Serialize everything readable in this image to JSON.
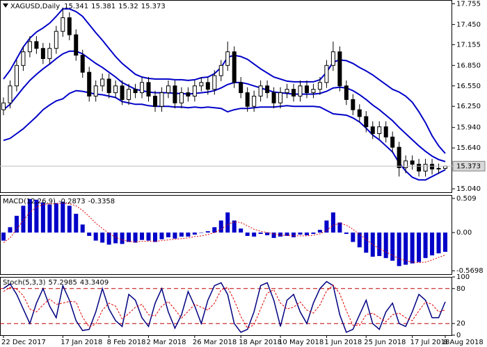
{
  "chart_data": [
    {
      "type": "candlestick",
      "title": "XAGUSD,Daily",
      "categories": [
        "22 Dec 2017",
        null,
        null,
        null,
        null,
        null,
        null,
        null,
        null,
        "17 Jan 2018",
        null,
        null,
        null,
        null,
        null,
        null,
        "8 Feb 2018",
        null,
        null,
        null,
        null,
        null,
        "2 Mar 2018",
        null,
        null,
        null,
        null,
        null,
        null,
        "26 Mar 2018",
        null,
        null,
        null,
        null,
        null,
        null,
        "18 Apr 2018",
        null,
        null,
        null,
        null,
        null,
        "10 May 2018",
        null,
        null,
        null,
        null,
        null,
        null,
        "1 Jun 2018",
        null,
        null,
        null,
        null,
        null,
        "25 Jun 2018",
        null,
        null,
        null,
        null,
        null,
        null,
        "17 Jul 2018",
        null,
        null,
        null,
        null,
        "8 Aug 2018"
      ],
      "open": [
        16.2,
        16.3,
        16.55,
        16.85,
        17.05,
        17.2,
        17.1,
        16.95,
        17.1,
        17.35,
        17.55,
        17.3,
        17.0,
        16.75,
        16.4,
        16.55,
        16.65,
        16.45,
        16.55,
        16.35,
        16.5,
        16.45,
        16.6,
        16.4,
        16.25,
        16.45,
        16.55,
        16.3,
        16.45,
        16.4,
        16.55,
        16.6,
        16.5,
        16.7,
        16.85,
        17.05,
        16.6,
        16.45,
        16.25,
        16.4,
        16.55,
        16.45,
        16.3,
        16.45,
        16.5,
        16.4,
        16.55,
        16.45,
        16.5,
        16.6,
        16.85,
        17.05,
        16.55,
        16.35,
        16.2,
        16.1,
        15.95,
        15.85,
        15.95,
        15.8,
        15.65,
        15.35,
        15.45,
        15.4,
        15.3,
        15.4,
        15.33,
        15.341
      ],
      "high": [
        16.38,
        16.63,
        16.93,
        17.13,
        17.28,
        17.28,
        17.18,
        17.18,
        17.43,
        17.7,
        17.63,
        17.38,
        17.08,
        16.83,
        16.63,
        16.73,
        16.73,
        16.63,
        16.63,
        16.58,
        16.58,
        16.68,
        16.68,
        16.48,
        16.53,
        16.63,
        16.63,
        16.53,
        16.53,
        16.63,
        16.68,
        16.68,
        16.78,
        16.93,
        17.2,
        17.13,
        16.68,
        16.53,
        16.48,
        16.63,
        16.63,
        16.53,
        16.53,
        16.58,
        16.58,
        16.63,
        16.63,
        16.58,
        16.68,
        16.93,
        17.2,
        17.13,
        16.63,
        16.43,
        16.28,
        16.18,
        16.03,
        16.03,
        16.03,
        15.88,
        15.73,
        15.53,
        15.53,
        15.48,
        15.48,
        15.48,
        15.41,
        15.381
      ],
      "low": [
        16.12,
        16.22,
        16.47,
        16.77,
        16.97,
        17.02,
        16.87,
        16.87,
        17.02,
        17.27,
        17.22,
        16.92,
        16.67,
        16.32,
        16.32,
        16.47,
        16.37,
        16.37,
        16.27,
        16.27,
        16.37,
        16.37,
        16.32,
        16.17,
        16.17,
        16.37,
        16.22,
        16.22,
        16.32,
        16.32,
        16.47,
        16.42,
        16.42,
        16.62,
        16.77,
        16.52,
        16.37,
        16.17,
        16.17,
        16.32,
        16.37,
        16.22,
        16.22,
        16.37,
        16.32,
        16.32,
        16.37,
        16.37,
        16.42,
        16.52,
        16.77,
        16.47,
        16.27,
        16.12,
        16.02,
        15.87,
        15.77,
        15.77,
        15.72,
        15.57,
        15.22,
        15.27,
        15.32,
        15.22,
        15.22,
        15.25,
        15.26,
        15.32
      ],
      "close": [
        16.3,
        16.55,
        16.85,
        17.05,
        17.2,
        17.1,
        16.95,
        17.1,
        17.35,
        17.55,
        17.3,
        17.0,
        16.75,
        16.4,
        16.55,
        16.65,
        16.45,
        16.55,
        16.35,
        16.5,
        16.45,
        16.6,
        16.4,
        16.25,
        16.45,
        16.55,
        16.3,
        16.45,
        16.4,
        16.55,
        16.6,
        16.5,
        16.7,
        16.85,
        17.05,
        16.6,
        16.45,
        16.25,
        16.4,
        16.55,
        16.45,
        16.3,
        16.45,
        16.5,
        16.4,
        16.55,
        16.45,
        16.5,
        16.6,
        16.85,
        17.05,
        16.55,
        16.35,
        16.2,
        16.1,
        15.95,
        15.85,
        15.95,
        15.8,
        15.65,
        15.35,
        15.45,
        15.4,
        15.3,
        15.4,
        15.33,
        15.34,
        15.373
      ],
      "bands": {
        "color": "#0000c8",
        "upper": [
          16.65,
          16.78,
          16.95,
          17.12,
          17.25,
          17.34,
          17.4,
          17.47,
          17.57,
          17.68,
          17.68,
          17.64,
          17.57,
          17.45,
          17.33,
          17.22,
          17.1,
          16.98,
          16.88,
          16.8,
          16.72,
          16.68,
          16.66,
          16.65,
          16.65,
          16.65,
          16.64,
          16.64,
          16.63,
          16.64,
          16.67,
          16.68,
          16.73,
          16.82,
          16.97,
          17.0,
          16.98,
          16.94,
          16.87,
          16.8,
          16.74,
          16.68,
          16.65,
          16.62,
          16.61,
          16.61,
          16.61,
          16.61,
          16.64,
          16.75,
          16.9,
          16.93,
          16.92,
          16.88,
          16.82,
          16.77,
          16.71,
          16.64,
          16.57,
          16.5,
          16.46,
          16.4,
          16.31,
          16.17,
          16.01,
          15.82,
          15.67,
          15.56
        ],
        "middle": [
          16.2,
          16.28,
          16.4,
          16.52,
          16.63,
          16.72,
          16.8,
          16.87,
          16.95,
          17.02,
          17.06,
          17.06,
          17.02,
          16.95,
          16.88,
          16.82,
          16.75,
          16.68,
          16.6,
          16.55,
          16.5,
          16.48,
          16.46,
          16.45,
          16.45,
          16.45,
          16.44,
          16.44,
          16.43,
          16.44,
          16.45,
          16.46,
          16.48,
          16.52,
          16.57,
          16.6,
          16.6,
          16.58,
          16.55,
          16.52,
          16.49,
          16.46,
          16.45,
          16.44,
          16.43,
          16.43,
          16.43,
          16.43,
          16.44,
          16.47,
          16.52,
          16.53,
          16.52,
          16.48,
          16.42,
          16.35,
          16.27,
          16.2,
          16.12,
          16.04,
          15.94,
          15.85,
          15.76,
          15.67,
          15.59,
          15.52,
          15.47,
          15.44
        ],
        "lower": [
          15.75,
          15.78,
          15.85,
          15.92,
          16.01,
          16.1,
          16.2,
          16.27,
          16.33,
          16.36,
          16.44,
          16.48,
          16.47,
          16.45,
          16.43,
          16.42,
          16.4,
          16.38,
          16.32,
          16.3,
          16.28,
          16.28,
          16.26,
          16.25,
          16.25,
          16.25,
          16.24,
          16.24,
          16.23,
          16.24,
          16.23,
          16.24,
          16.23,
          16.22,
          16.17,
          16.2,
          16.22,
          16.22,
          16.23,
          16.24,
          16.24,
          16.24,
          16.25,
          16.26,
          16.25,
          16.25,
          16.25,
          16.25,
          16.24,
          16.19,
          16.14,
          16.13,
          16.12,
          16.08,
          16.02,
          15.93,
          15.83,
          15.76,
          15.67,
          15.58,
          15.42,
          15.3,
          15.21,
          15.17,
          15.17,
          15.22,
          15.27,
          15.32
        ]
      },
      "ylim": [
        14.99,
        17.81
      ],
      "yticks": [
        17.755,
        {
          "value": 17.45,
          "label": "17.450"
        },
        17.155,
        {
          "value": 16.85,
          "label": "16.850"
        },
        {
          "value": 16.55,
          "label": "16.550"
        },
        {
          "value": 16.25,
          "label": "16.250"
        },
        {
          "value": 15.94,
          "label": "15.940"
        },
        {
          "value": 15.64,
          "label": "15.640"
        },
        {
          "value": 15.04,
          "label": "15.040"
        }
      ]
    },
    {
      "type": "macd",
      "title": "MACD(12,26,9)",
      "histogram": {
        "color": "#0000c8",
        "values": [
          -0.12,
          0.08,
          0.25,
          0.4,
          0.5,
          0.49,
          0.45,
          0.42,
          0.44,
          0.46,
          0.4,
          0.28,
          0.12,
          -0.05,
          -0.12,
          -0.15,
          -0.18,
          -0.16,
          -0.17,
          -0.14,
          -0.15,
          -0.11,
          -0.12,
          -0.14,
          -0.1,
          -0.07,
          -0.09,
          -0.06,
          -0.06,
          -0.03,
          0.0,
          0.02,
          0.08,
          0.18,
          0.3,
          0.18,
          0.06,
          -0.05,
          -0.06,
          -0.02,
          -0.04,
          -0.08,
          -0.06,
          -0.05,
          -0.07,
          -0.03,
          -0.04,
          -0.02,
          0.04,
          0.18,
          0.3,
          0.15,
          -0.02,
          -0.14,
          -0.22,
          -0.3,
          -0.36,
          -0.35,
          -0.38,
          -0.42,
          -0.5,
          -0.48,
          -0.46,
          -0.44,
          -0.38,
          -0.34,
          -0.31,
          -0.2873
        ]
      },
      "signal": {
        "color": "#e00000",
        "values": [
          -0.15,
          -0.08,
          0.05,
          0.18,
          0.3,
          0.38,
          0.42,
          0.43,
          0.43,
          0.44,
          0.43,
          0.4,
          0.33,
          0.24,
          0.14,
          0.06,
          -0.01,
          -0.07,
          -0.11,
          -0.13,
          -0.14,
          -0.13,
          -0.13,
          -0.13,
          -0.12,
          -0.11,
          -0.1,
          -0.09,
          -0.08,
          -0.06,
          -0.05,
          -0.03,
          0.0,
          0.05,
          0.12,
          0.16,
          0.15,
          0.1,
          0.05,
          0.02,
          0.0,
          -0.02,
          -0.04,
          -0.04,
          -0.05,
          -0.05,
          -0.05,
          -0.04,
          -0.02,
          0.03,
          0.11,
          0.14,
          0.11,
          0.05,
          -0.03,
          -0.1,
          -0.18,
          -0.24,
          -0.29,
          -0.34,
          -0.39,
          -0.42,
          -0.44,
          -0.45,
          -0.44,
          -0.41,
          -0.37,
          -0.3358
        ]
      },
      "ylim": [
        -0.62,
        0.56
      ],
      "yticks": [
        0.509,
        {
          "value": 0,
          "label": "0.00"
        },
        -0.5698
      ]
    },
    {
      "type": "stochastic",
      "title": "Stoch(5,3,3)",
      "k": {
        "color": "#000080",
        "values": [
          80,
          88,
          70,
          45,
          20,
          55,
          80,
          50,
          30,
          85,
          60,
          25,
          8,
          10,
          40,
          80,
          45,
          25,
          15,
          70,
          60,
          30,
          15,
          55,
          80,
          40,
          12,
          35,
          75,
          50,
          20,
          60,
          85,
          90,
          70,
          20,
          5,
          10,
          40,
          85,
          90,
          60,
          15,
          60,
          70,
          40,
          20,
          55,
          80,
          92,
          85,
          35,
          5,
          10,
          35,
          60,
          20,
          10,
          40,
          55,
          20,
          15,
          40,
          70,
          60,
          30,
          30,
          57.2985
        ]
      },
      "d": {
        "color": "#e00000",
        "values": [
          75,
          82,
          79,
          68,
          45,
          40,
          52,
          62,
          53,
          55,
          58,
          57,
          31,
          14,
          19,
          43,
          55,
          50,
          28,
          37,
          48,
          53,
          35,
          33,
          50,
          58,
          44,
          29,
          41,
          53,
          48,
          43,
          55,
          78,
          82,
          60,
          32,
          12,
          18,
          45,
          72,
          78,
          55,
          45,
          48,
          57,
          43,
          38,
          52,
          76,
          86,
          71,
          42,
          17,
          17,
          35,
          38,
          30,
          23,
          35,
          38,
          30,
          25,
          42,
          57,
          53,
          40,
          43.3409
        ]
      },
      "levels": [
        80,
        20
      ],
      "level_color": "#c00000",
      "ylim": [
        0,
        100
      ],
      "yticks": [
        100,
        80,
        20,
        0
      ]
    }
  ]
}
